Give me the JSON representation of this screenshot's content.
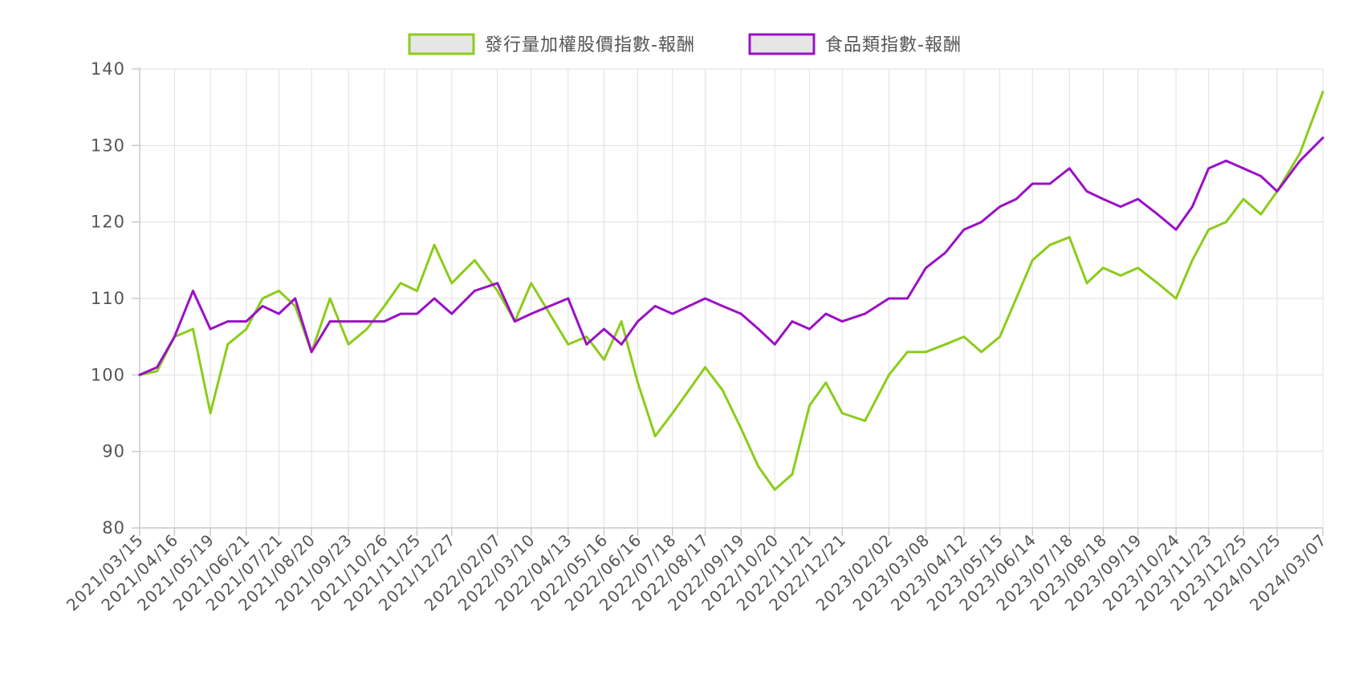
{
  "chart_data": {
    "type": "line",
    "title": "",
    "xlabel": "",
    "ylabel": "",
    "ylim": [
      80,
      140
    ],
    "yticks": [
      80,
      90,
      100,
      110,
      120,
      130,
      140
    ],
    "grid": true,
    "legend_position": "top-center",
    "x_tick_labels": [
      "2021/03/15",
      "2021/04/16",
      "2021/05/19",
      "2021/06/21",
      "2021/07/21",
      "2021/08/20",
      "2021/09/23",
      "2021/10/26",
      "2021/11/25",
      "2021/12/27",
      "2022/02/07",
      "2022/03/10",
      "2022/04/13",
      "2022/05/16",
      "2022/06/16",
      "2022/07/18",
      "2022/08/17",
      "2022/09/19",
      "2022/10/20",
      "2022/11/21",
      "2022/12/21",
      "2023/02/02",
      "2023/03/08",
      "2023/04/12",
      "2023/05/15",
      "2023/06/14",
      "2023/07/18",
      "2023/08/18",
      "2023/09/19",
      "2023/10/24",
      "2023/11/23",
      "2023/12/25",
      "2024/01/25",
      "2024/03/07"
    ],
    "x": [
      "2021/03/15",
      "2021/03/31",
      "2021/04/16",
      "2021/05/03",
      "2021/05/19",
      "2021/06/04",
      "2021/06/21",
      "2021/07/06",
      "2021/07/21",
      "2021/08/05",
      "2021/08/20",
      "2021/09/06",
      "2021/09/23",
      "2021/10/10",
      "2021/10/26",
      "2021/11/10",
      "2021/11/25",
      "2021/12/11",
      "2021/12/27",
      "2022/01/17",
      "2022/02/07",
      "2022/02/23",
      "2022/03/10",
      "2022/03/27",
      "2022/04/13",
      "2022/04/30",
      "2022/05/16",
      "2022/06/01",
      "2022/06/16",
      "2022/07/02",
      "2022/07/18",
      "2022/08/02",
      "2022/08/17",
      "2022/09/02",
      "2022/09/19",
      "2022/10/05",
      "2022/10/20",
      "2022/11/05",
      "2022/11/21",
      "2022/12/06",
      "2022/12/21",
      "2023/01/11",
      "2023/02/02",
      "2023/02/19",
      "2023/03/08",
      "2023/03/26",
      "2023/04/12",
      "2023/04/28",
      "2023/05/15",
      "2023/05/30",
      "2023/06/14",
      "2023/06/30",
      "2023/07/18",
      "2023/08/03",
      "2023/08/18",
      "2023/09/03",
      "2023/09/19",
      "2023/10/07",
      "2023/10/24",
      "2023/11/08",
      "2023/11/23",
      "2023/12/09",
      "2023/12/25",
      "2024/01/10",
      "2024/01/25",
      "2024/02/15",
      "2024/03/07"
    ],
    "series": [
      {
        "name": "發行量加權股價指數-報酬",
        "color": "#8ccc1a",
        "values": [
          100,
          100.5,
          105,
          106,
          95,
          104,
          106,
          110,
          111,
          109,
          103,
          110,
          104,
          106,
          109,
          112,
          111,
          117,
          112,
          115,
          111,
          107,
          112,
          108,
          104,
          105,
          102,
          107,
          99,
          92,
          95,
          98,
          101,
          98,
          93,
          88,
          85,
          87,
          96,
          99,
          95,
          94,
          100,
          103,
          103,
          104,
          105,
          103,
          105,
          110,
          115,
          117,
          118,
          112,
          114,
          113,
          114,
          112,
          110,
          115,
          119,
          120,
          123,
          121,
          124,
          129,
          137
        ]
      },
      {
        "name": "食品類指數-報酬",
        "color": "#9b10c6",
        "values": [
          100,
          101,
          105,
          111,
          106,
          107,
          107,
          109,
          108,
          110,
          103,
          107,
          107,
          107,
          107,
          108,
          108,
          110,
          108,
          111,
          112,
          107,
          108,
          109,
          110,
          104,
          106,
          104,
          107,
          109,
          108,
          109,
          110,
          109,
          108,
          106,
          104,
          107,
          106,
          108,
          107,
          108,
          110,
          110,
          114,
          116,
          119,
          120,
          122,
          123,
          125,
          125,
          127,
          124,
          123,
          122,
          123,
          121,
          119,
          122,
          127,
          128,
          127,
          126,
          124,
          128,
          131
        ]
      }
    ]
  }
}
